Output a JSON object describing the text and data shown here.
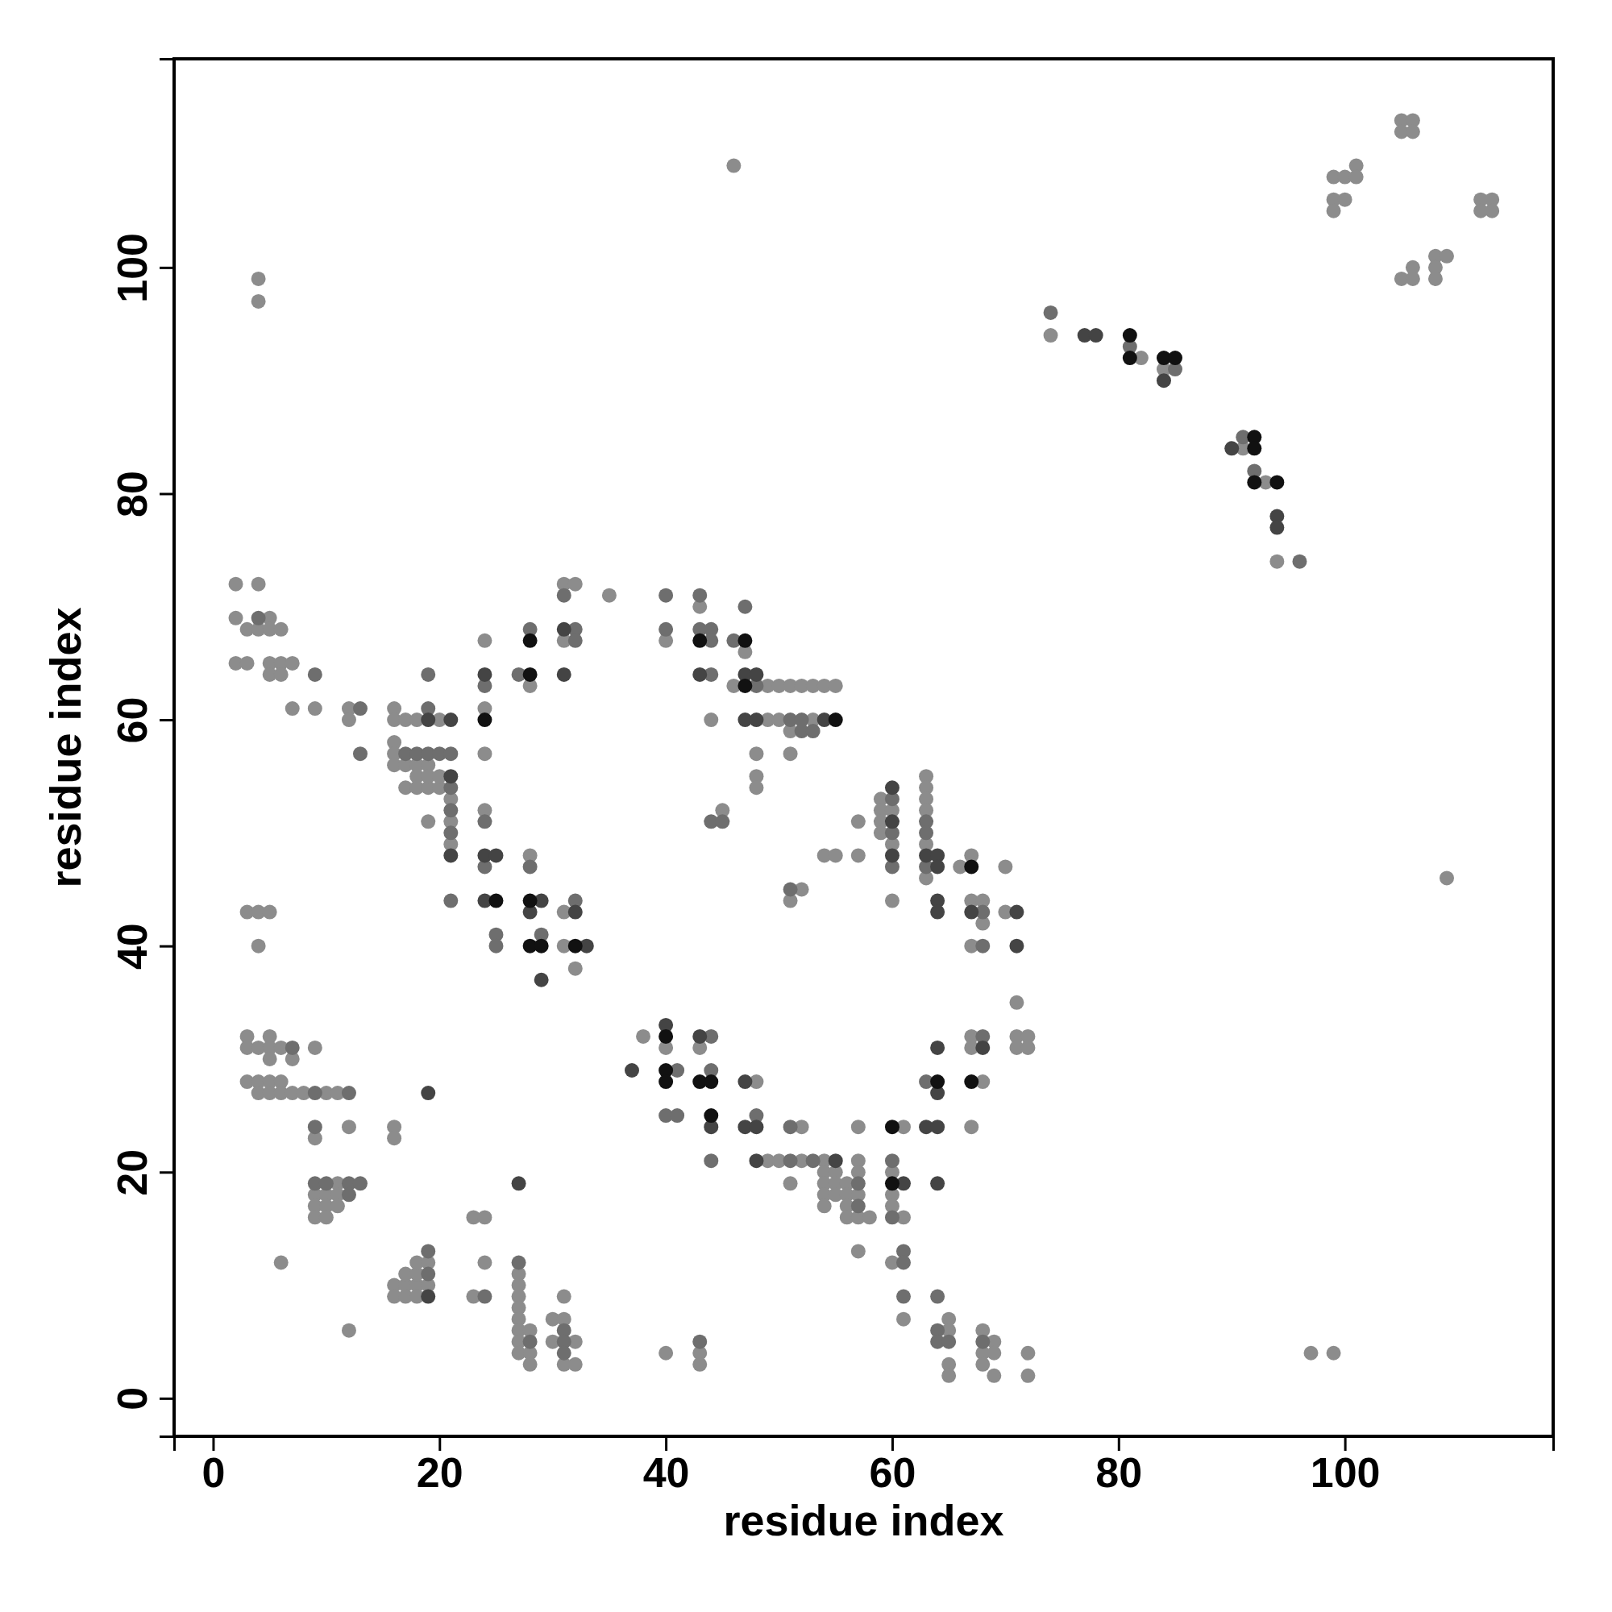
{
  "chart_data": {
    "type": "scatter",
    "xlabel": "residue index",
    "ylabel": "residue index",
    "xlim": [
      -3.45,
      118.4
    ],
    "ylim": [
      -3.36,
      118.45
    ],
    "xticks": [
      0,
      20,
      40,
      60,
      80,
      100
    ],
    "yticks": [
      0,
      20,
      40,
      60,
      80,
      100
    ],
    "marker": "circle",
    "series": [
      {
        "color": "#8c8c8c",
        "x": [
          46,
          99,
          100,
          101,
          101,
          99,
          99,
          100,
          105,
          106,
          105,
          106,
          112,
          113,
          112,
          113,
          105,
          106,
          106,
          108,
          109,
          108,
          108,
          4,
          4,
          74,
          82,
          84,
          91,
          93,
          94,
          109,
          97,
          99,
          2,
          4,
          2,
          5,
          3,
          4,
          5,
          6,
          2,
          3,
          5,
          6,
          7,
          5,
          6,
          7,
          9,
          12,
          12,
          16,
          16,
          17,
          18,
          20,
          16,
          16,
          16,
          17,
          18,
          19,
          17,
          18,
          19,
          20,
          18,
          19,
          20,
          21,
          21,
          21,
          19,
          24,
          24,
          24,
          24,
          28,
          28,
          31,
          32,
          31,
          31,
          31,
          32,
          35,
          40,
          43,
          44,
          47,
          46,
          49,
          50,
          53,
          49,
          50,
          51,
          52,
          53,
          54,
          55,
          51,
          48,
          48,
          48,
          51,
          45,
          51,
          52,
          54,
          55,
          57,
          57,
          59,
          59,
          59,
          59,
          60,
          60,
          60,
          63,
          63,
          63,
          63,
          63,
          63,
          66,
          67,
          67,
          68,
          68,
          67,
          70,
          70,
          71,
          71,
          72,
          71,
          72,
          67,
          67,
          68,
          67,
          61,
          3,
          4,
          5,
          4,
          3,
          5,
          3,
          4,
          5,
          6,
          5,
          7,
          3,
          4,
          5,
          6,
          4,
          5,
          6,
          7,
          8,
          10,
          11,
          9,
          9,
          12,
          16,
          16,
          11,
          9,
          10,
          11,
          9,
          10,
          11,
          9,
          10,
          6,
          12,
          16,
          17,
          18,
          19,
          16,
          17,
          18,
          17,
          18,
          18,
          19,
          23,
          24,
          24,
          23,
          27,
          27,
          27,
          27,
          27,
          27,
          27,
          27,
          28,
          28,
          28,
          30,
          31,
          31,
          30,
          32,
          31,
          32,
          40,
          43,
          43,
          38,
          40,
          43,
          48,
          49,
          50,
          52,
          54,
          52,
          51,
          54,
          55,
          54,
          55,
          54,
          55,
          54,
          56,
          56,
          56,
          56,
          57,
          57,
          57,
          57,
          58,
          57,
          57,
          60,
          60,
          60,
          61,
          60,
          61,
          65,
          65,
          65,
          65,
          68,
          69,
          68,
          69,
          68,
          69,
          72,
          72
        ],
        "values": [
          109,
          108,
          108,
          109,
          108,
          106,
          105,
          106,
          113,
          113,
          112,
          112,
          106,
          106,
          105,
          105,
          99,
          100,
          99,
          101,
          101,
          100,
          99,
          99,
          97,
          94,
          92,
          91,
          84,
          81,
          74,
          46,
          4,
          4,
          72,
          72,
          69,
          69,
          68,
          68,
          68,
          68,
          65,
          65,
          65,
          65,
          65,
          64,
          64,
          61,
          61,
          61,
          60,
          61,
          60,
          60,
          60,
          60,
          58,
          57,
          56,
          56,
          56,
          56,
          54,
          54,
          54,
          54,
          55,
          55,
          55,
          53,
          51,
          49,
          51,
          67,
          61,
          57,
          52,
          63,
          48,
          72,
          72,
          67,
          43,
          40,
          38,
          71,
          67,
          70,
          60,
          66,
          63,
          60,
          60,
          60,
          63,
          63,
          63,
          63,
          63,
          63,
          63,
          59,
          57,
          55,
          54,
          57,
          52,
          44,
          45,
          48,
          48,
          48,
          51,
          53,
          52,
          51,
          50,
          52,
          49,
          44,
          55,
          54,
          53,
          52,
          49,
          46,
          47,
          48,
          44,
          44,
          42,
          40,
          47,
          43,
          35,
          32,
          32,
          31,
          31,
          32,
          31,
          28,
          24,
          24,
          43,
          43,
          43,
          40,
          32,
          32,
          31,
          31,
          31,
          31,
          30,
          30,
          28,
          28,
          28,
          28,
          27,
          27,
          27,
          27,
          27,
          27,
          27,
          31,
          23,
          24,
          24,
          23,
          19,
          18,
          18,
          18,
          17,
          17,
          17,
          16,
          16,
          12,
          6,
          10,
          10,
          10,
          10,
          9,
          9,
          9,
          11,
          11,
          12,
          12,
          16,
          16,
          12,
          9,
          11,
          10,
          9,
          8,
          7,
          6,
          5,
          4,
          6,
          4,
          3,
          7,
          9,
          7,
          5,
          5,
          3,
          3,
          4,
          4,
          3,
          32,
          31,
          31,
          28,
          21,
          21,
          21,
          21,
          24,
          19,
          20,
          20,
          19,
          19,
          18,
          18,
          17,
          19,
          18,
          17,
          16,
          21,
          20,
          18,
          16,
          16,
          13,
          24,
          20,
          18,
          17,
          16,
          12,
          7,
          7,
          6,
          3,
          2,
          6,
          5,
          4,
          4,
          3,
          2,
          4,
          2
        ]
      },
      {
        "color": "#6e6e6e",
        "x": [
          74,
          81,
          85,
          91,
          92,
          96,
          4,
          9,
          13,
          13,
          19,
          19,
          17,
          18,
          19,
          20,
          21,
          21,
          21,
          21,
          21,
          24,
          24,
          24,
          25,
          25,
          27,
          28,
          28,
          29,
          31,
          32,
          32,
          32,
          40,
          40,
          43,
          43,
          44,
          44,
          44,
          46,
          47,
          48,
          51,
          52,
          52,
          53,
          44,
          45,
          51,
          60,
          60,
          60,
          63,
          63,
          63,
          68,
          68,
          68,
          63,
          7,
          9,
          12,
          9,
          9,
          10,
          12,
          13,
          12,
          19,
          19,
          24,
          27,
          28,
          31,
          31,
          31,
          43,
          41,
          40,
          41,
          44,
          44,
          44,
          48,
          51,
          53,
          51,
          57,
          57,
          60,
          60,
          61,
          61,
          61,
          64,
          64,
          64,
          65,
          68
        ],
        "values": [
          96,
          93,
          91,
          85,
          82,
          74,
          69,
          64,
          61,
          57,
          61,
          64,
          57,
          57,
          57,
          57,
          57,
          54,
          52,
          50,
          44,
          63,
          51,
          47,
          41,
          40,
          64,
          68,
          47,
          41,
          71,
          68,
          67,
          44,
          71,
          68,
          71,
          68,
          68,
          67,
          64,
          67,
          70,
          63,
          60,
          60,
          59,
          59,
          51,
          51,
          45,
          53,
          50,
          47,
          51,
          50,
          47,
          43,
          40,
          32,
          28,
          31,
          27,
          27,
          24,
          19,
          19,
          19,
          19,
          18,
          13,
          11,
          9,
          12,
          5,
          6,
          5,
          4,
          5,
          29,
          25,
          25,
          32,
          29,
          21,
          25,
          21,
          21,
          24,
          19,
          17,
          21,
          16,
          13,
          12,
          9,
          9,
          6,
          5,
          5,
          5
        ]
      },
      {
        "color": "#444444",
        "x": [
          77,
          78,
          84,
          90,
          94,
          94,
          19,
          21,
          21,
          21,
          24,
          24,
          25,
          24,
          28,
          29,
          29,
          31,
          31,
          32,
          33,
          43,
          47,
          48,
          47,
          48,
          54,
          60,
          60,
          60,
          63,
          64,
          64,
          64,
          64,
          67,
          71,
          71,
          68,
          64,
          64,
          63,
          64,
          64,
          19,
          19,
          27,
          37,
          40,
          43,
          44,
          47,
          47,
          48,
          48,
          55,
          61
        ],
        "values": [
          94,
          94,
          90,
          84,
          78,
          77,
          60,
          60,
          55,
          48,
          64,
          48,
          48,
          44,
          43,
          44,
          37,
          68,
          64,
          43,
          40,
          64,
          64,
          64,
          60,
          60,
          60,
          54,
          51,
          48,
          48,
          48,
          47,
          44,
          43,
          43,
          43,
          40,
          31,
          31,
          27,
          24,
          24,
          19,
          27,
          9,
          19,
          29,
          33,
          32,
          24,
          28,
          24,
          24,
          21,
          21,
          19
        ]
      },
      {
        "color": "#111111",
        "x": [
          81,
          81,
          84,
          85,
          92,
          92,
          92,
          94,
          24,
          25,
          28,
          28,
          28,
          28,
          29,
          32,
          43,
          47,
          47,
          55,
          67,
          67,
          64,
          40,
          40,
          40,
          43,
          44,
          44,
          60,
          60
        ],
        "values": [
          94,
          92,
          92,
          92,
          85,
          84,
          81,
          81,
          60,
          44,
          67,
          64,
          44,
          40,
          40,
          40,
          67,
          67,
          63,
          60,
          47,
          28,
          28,
          32,
          29,
          28,
          28,
          28,
          25,
          24,
          19
        ]
      }
    ]
  }
}
